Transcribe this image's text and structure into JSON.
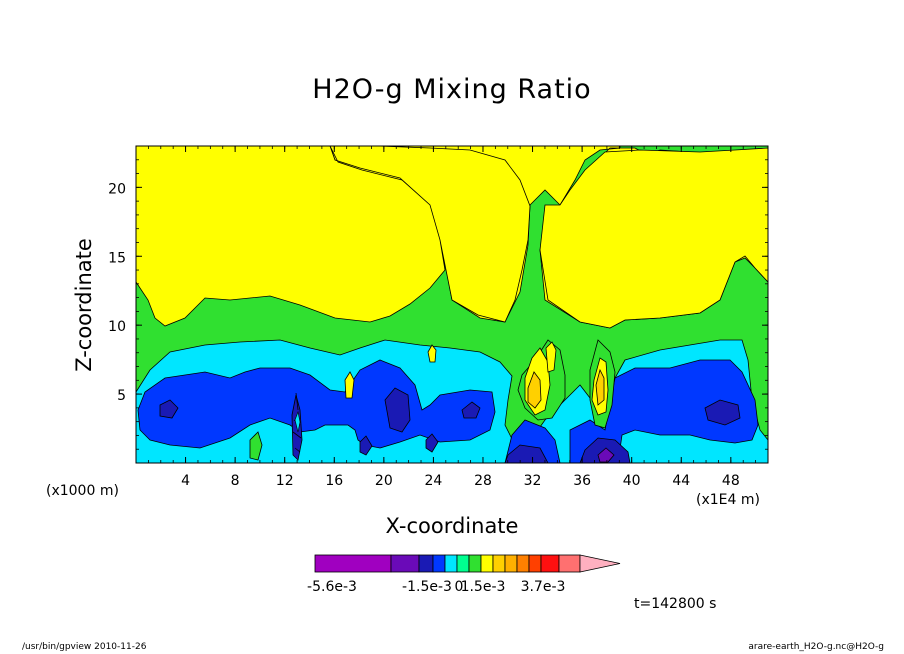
{
  "chart_data": {
    "type": "contour",
    "title": "H2O-g Mixing Ratio",
    "xlabel": "X-coordinate",
    "ylabel": "Z-coordinate",
    "x_unit_label": "(x1000 m)",
    "x_scale_label": "(x1E4 m)",
    "time_label": "t=142800 s",
    "xlim": [
      0,
      51
    ],
    "ylim": [
      0,
      23
    ],
    "x_ticks": [
      4,
      8,
      12,
      16,
      20,
      24,
      28,
      32,
      36,
      40,
      44,
      48
    ],
    "y_ticks": [
      5,
      10,
      15,
      20
    ],
    "colorbar": {
      "colors": [
        "#a000c0",
        "#6a0ab8",
        "#1a1ab4",
        "#0038ff",
        "#00e6ff",
        "#00ff90",
        "#30e030",
        "#ffff00",
        "#ffd000",
        "#ffb000",
        "#ff8000",
        "#ff4000",
        "#ff1010",
        "#ff7070",
        "#ffb0c0"
      ],
      "tick_labels": [
        "-5.6e-3",
        "-1.5e-3",
        "0",
        "1.5e-3",
        "3.7e-3"
      ]
    }
  },
  "footer": {
    "left": "/usr/bin/gpview   2010-11-26",
    "right": "arare-earth_H2O-g.nc@H2O-g"
  }
}
